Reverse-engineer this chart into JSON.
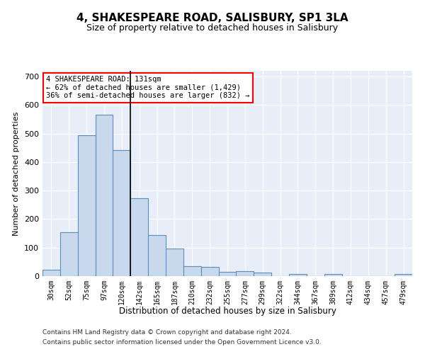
{
  "title": "4, SHAKESPEARE ROAD, SALISBURY, SP1 3LA",
  "subtitle": "Size of property relative to detached houses in Salisbury",
  "xlabel": "Distribution of detached houses by size in Salisbury",
  "ylabel": "Number of detached properties",
  "footnote1": "Contains HM Land Registry data © Crown copyright and database right 2024.",
  "footnote2": "Contains public sector information licensed under the Open Government Licence v3.0.",
  "annotation_line1": "4 SHAKESPEARE ROAD: 131sqm",
  "annotation_line2": "← 62% of detached houses are smaller (1,429)",
  "annotation_line3": "36% of semi-detached houses are larger (832) →",
  "bar_color": "#c9d9ed",
  "bar_edge_color": "#5b8db8",
  "marker_line_color": "#000000",
  "background_color": "#e8eef7",
  "fig_background": "#ffffff",
  "categories": [
    "30sqm",
    "52sqm",
    "75sqm",
    "97sqm",
    "120sqm",
    "142sqm",
    "165sqm",
    "187sqm",
    "210sqm",
    "232sqm",
    "255sqm",
    "277sqm",
    "299sqm",
    "322sqm",
    "344sqm",
    "367sqm",
    "389sqm",
    "412sqm",
    "434sqm",
    "457sqm",
    "479sqm"
  ],
  "values": [
    22,
    155,
    493,
    567,
    443,
    273,
    145,
    97,
    35,
    33,
    14,
    18,
    12,
    0,
    7,
    0,
    7,
    0,
    0,
    0,
    7
  ],
  "marker_bin_index": 4,
  "ylim": [
    0,
    720
  ],
  "yticks": [
    0,
    100,
    200,
    300,
    400,
    500,
    600,
    700
  ]
}
